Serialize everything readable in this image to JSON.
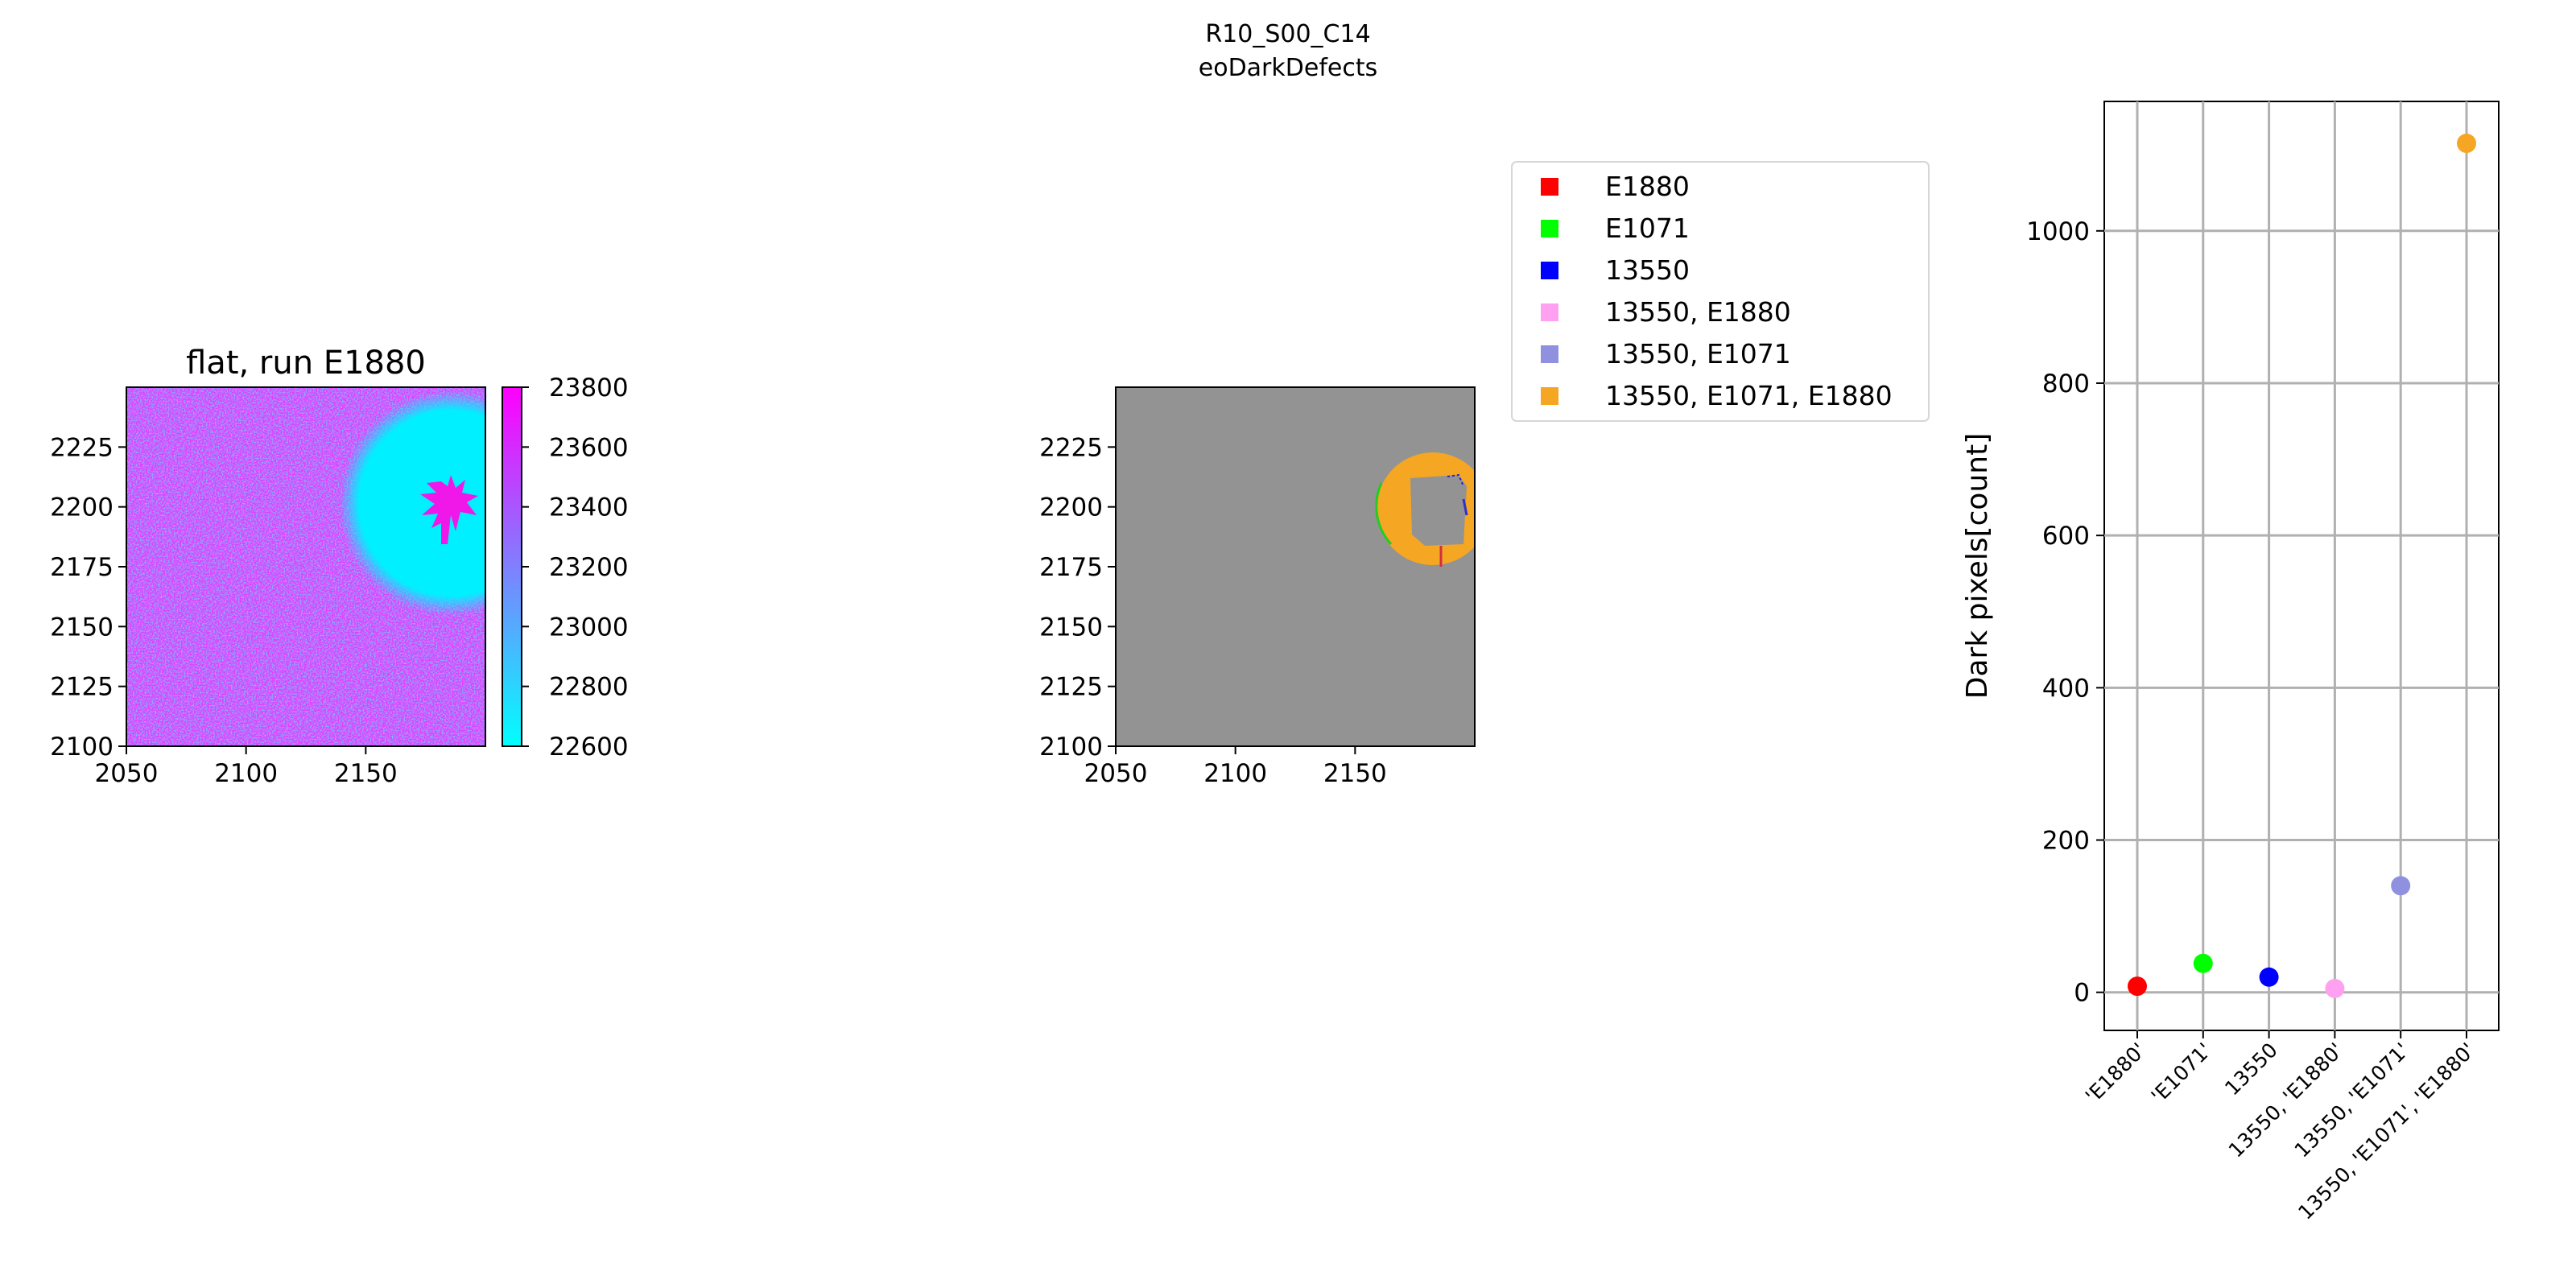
{
  "figure": {
    "suptitle_line1": "R10_S00_C14",
    "suptitle_line2": "eoDarkDefects"
  },
  "chart_data": [
    {
      "type": "heatmap",
      "title": "flat, run E1880",
      "xlim": [
        2050,
        2200
      ],
      "ylim": [
        2100,
        2250
      ],
      "xticks": [
        "2050",
        "2100",
        "2150"
      ],
      "yticks": [
        "2100",
        "2125",
        "2150",
        "2175",
        "2200",
        "2225"
      ],
      "colormap": [
        "#00ffff",
        "#ff00ff"
      ],
      "background_color": "#e040ff",
      "feature_color": "#00f0ff",
      "colorbar": {
        "range": [
          22600,
          23800
        ],
        "ticks": [
          "22600",
          "22800",
          "23000",
          "23200",
          "23400",
          "23600",
          "23800"
        ]
      }
    },
    {
      "type": "heatmap",
      "title": "",
      "xlim": [
        2050,
        2200
      ],
      "ylim": [
        2100,
        2250
      ],
      "xticks": [
        "2050",
        "2100",
        "2150"
      ],
      "yticks": [
        "2100",
        "2125",
        "2150",
        "2175",
        "2200",
        "2225"
      ],
      "background_color": "#939393",
      "legend": {
        "placement": "upper-right",
        "entries": [
          {
            "label": "E1880",
            "color": "#ff0000"
          },
          {
            "label": "E1071",
            "color": "#00ff00"
          },
          {
            "label": "13550",
            "color": "#0000ff"
          },
          {
            "label": "13550, E1880",
            "color": "#ffa0f0"
          },
          {
            "label": "13550, E1071",
            "color": "#9090e0"
          },
          {
            "label": "13550, E1071, E1880",
            "color": "#f5a623"
          }
        ]
      }
    },
    {
      "type": "scatter",
      "title": "",
      "xlabel": "",
      "ylabel": "Dark pixels[count]",
      "categories": [
        "'E1880'",
        "'E1071'",
        "13550",
        "13550, 'E1880'",
        "13550, 'E1071'",
        "13550, 'E1071', 'E1880'"
      ],
      "values": [
        8,
        38,
        20,
        5,
        140,
        1115
      ],
      "colors": [
        "#ff0000",
        "#00ff00",
        "#0000ff",
        "#ffa0f0",
        "#9090e0",
        "#f5a623"
      ],
      "ylim": [
        -50,
        1170
      ],
      "yticks": [
        0,
        200,
        400,
        600,
        800,
        1000
      ],
      "grid": true
    }
  ]
}
